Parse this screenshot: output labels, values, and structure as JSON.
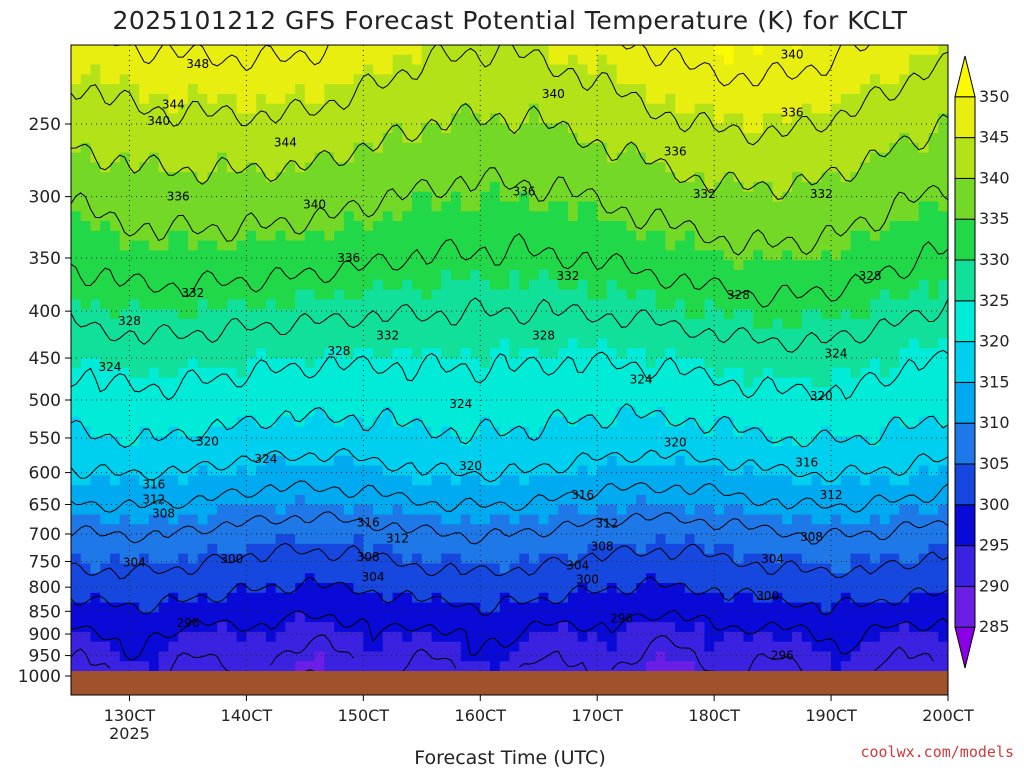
{
  "chart_data": {
    "type": "heatmap",
    "title": "2025101212 GFS Forecast Potential Temperature (K) for KCLT",
    "xlabel": "Forecast Time (UTC)",
    "ylabel": "",
    "credit": "coolwx.com/models",
    "scale": {
      "y": "log-pressure",
      "y_reversed": true,
      "grid": "dotted"
    },
    "xlim": [
      "12/12Z",
      "20/00Z"
    ],
    "ylim": [
      1000,
      200
    ],
    "x_ticks": [
      {
        "label": "130CT",
        "sub": "2025",
        "day": 13
      },
      {
        "label": "140CT",
        "day": 14
      },
      {
        "label": "150CT",
        "day": 15
      },
      {
        "label": "160CT",
        "day": 16
      },
      {
        "label": "170CT",
        "day": 17
      },
      {
        "label": "180CT",
        "day": 18
      },
      {
        "label": "190CT",
        "day": 19
      },
      {
        "label": "200CT",
        "day": 20
      }
    ],
    "y_ticks": [
      "250",
      "300",
      "350",
      "400",
      "450",
      "500",
      "550",
      "600",
      "650",
      "700",
      "750",
      "800",
      "850",
      "900",
      "950",
      "1000"
    ],
    "colorbar": {
      "levels": [
        285,
        290,
        295,
        300,
        305,
        310,
        315,
        320,
        325,
        330,
        335,
        340,
        345,
        350
      ],
      "labels": [
        "285",
        "290",
        "295",
        "300",
        "305",
        "310",
        "315",
        "320",
        "325",
        "330",
        "335",
        "340",
        "345",
        "350"
      ],
      "colors": [
        "#8a00e6",
        "#6a1ee6",
        "#3a22e0",
        "#0a0ad8",
        "#1648e0",
        "#1e78e8",
        "#00aaf0",
        "#00d0f0",
        "#00ecd8",
        "#10e09a",
        "#20d848",
        "#74d826",
        "#b4e218",
        "#e8ee10",
        "#fcfa00"
      ]
    },
    "ground_color": "#a0522d",
    "contour_interval": 4,
    "series": [
      {
        "name": "",
        "values": [
          [
            0,
            1000,
            289
          ],
          [
            20,
            1000,
            290
          ],
          [
            40,
            1000,
            292
          ],
          [
            60,
            1000,
            293
          ],
          [
            80,
            1000,
            292
          ],
          [
            100,
            1000,
            291
          ],
          [
            120,
            1000,
            290
          ],
          [
            140,
            1000,
            290
          ],
          [
            168,
            1000,
            289
          ]
        ]
      }
    ],
    "profile": {
      "pressure": [
        1000,
        950,
        900,
        850,
        800,
        750,
        700,
        650,
        600,
        550,
        500,
        450,
        400,
        350,
        300,
        250,
        200
      ],
      "theta": [
        291,
        293,
        295,
        298,
        301,
        304,
        307,
        311,
        315,
        319,
        322,
        325,
        329,
        333,
        337,
        342,
        348
      ]
    },
    "contour_labels": [
      {
        "text": "348",
        "t": 26,
        "p": 215
      },
      {
        "text": "344",
        "t": 21,
        "p": 238
      },
      {
        "text": "340",
        "t": 18,
        "p": 248
      },
      {
        "text": "344",
        "t": 44,
        "p": 262
      },
      {
        "text": "336",
        "t": 22,
        "p": 300
      },
      {
        "text": "340",
        "t": 50,
        "p": 306
      },
      {
        "text": "336",
        "t": 57,
        "p": 350
      },
      {
        "text": "332",
        "t": 25,
        "p": 382
      },
      {
        "text": "328",
        "t": 12,
        "p": 410
      },
      {
        "text": "324",
        "t": 8,
        "p": 460
      },
      {
        "text": "332",
        "t": 65,
        "p": 425
      },
      {
        "text": "328",
        "t": 55,
        "p": 442
      },
      {
        "text": "324",
        "t": 40,
        "p": 580
      },
      {
        "text": "320",
        "t": 28,
        "p": 555
      },
      {
        "text": "316",
        "t": 17,
        "p": 618
      },
      {
        "text": "312",
        "t": 17,
        "p": 642
      },
      {
        "text": "308",
        "t": 19,
        "p": 665
      },
      {
        "text": "304",
        "t": 13,
        "p": 752
      },
      {
        "text": "300",
        "t": 33,
        "p": 745
      },
      {
        "text": "296",
        "t": 24,
        "p": 875
      },
      {
        "text": "316",
        "t": 61,
        "p": 680
      },
      {
        "text": "312",
        "t": 67,
        "p": 708
      },
      {
        "text": "308",
        "t": 61,
        "p": 742
      },
      {
        "text": "304",
        "t": 62,
        "p": 780
      },
      {
        "text": "340",
        "t": 99,
        "p": 232
      },
      {
        "text": "336",
        "t": 93,
        "p": 296
      },
      {
        "text": "332",
        "t": 102,
        "p": 366
      },
      {
        "text": "328",
        "t": 97,
        "p": 425
      },
      {
        "text": "324",
        "t": 80,
        "p": 505
      },
      {
        "text": "320",
        "t": 82,
        "p": 590
      },
      {
        "text": "316",
        "t": 105,
        "p": 635
      },
      {
        "text": "312",
        "t": 110,
        "p": 682
      },
      {
        "text": "308",
        "t": 109,
        "p": 722
      },
      {
        "text": "304",
        "t": 104,
        "p": 758
      },
      {
        "text": "300",
        "t": 106,
        "p": 785
      },
      {
        "text": "296",
        "t": 113,
        "p": 865
      },
      {
        "text": "336",
        "t": 124,
        "p": 268
      },
      {
        "text": "332",
        "t": 130,
        "p": 298
      },
      {
        "text": "328",
        "t": 137,
        "p": 384
      },
      {
        "text": "324",
        "t": 117,
        "p": 475
      },
      {
        "text": "320",
        "t": 124,
        "p": 556
      },
      {
        "text": "340",
        "t": 148,
        "p": 210
      },
      {
        "text": "336",
        "t": 148,
        "p": 243
      },
      {
        "text": "332",
        "t": 154,
        "p": 298
      },
      {
        "text": "328",
        "t": 164,
        "p": 366
      },
      {
        "text": "324",
        "t": 157,
        "p": 445
      },
      {
        "text": "320",
        "t": 154,
        "p": 495
      },
      {
        "text": "316",
        "t": 151,
        "p": 585
      },
      {
        "text": "312",
        "t": 156,
        "p": 635
      },
      {
        "text": "308",
        "t": 152,
        "p": 705
      },
      {
        "text": "304",
        "t": 144,
        "p": 745
      },
      {
        "text": "300",
        "t": 143,
        "p": 818
      },
      {
        "text": "296",
        "t": 146,
        "p": 950
      }
    ]
  }
}
